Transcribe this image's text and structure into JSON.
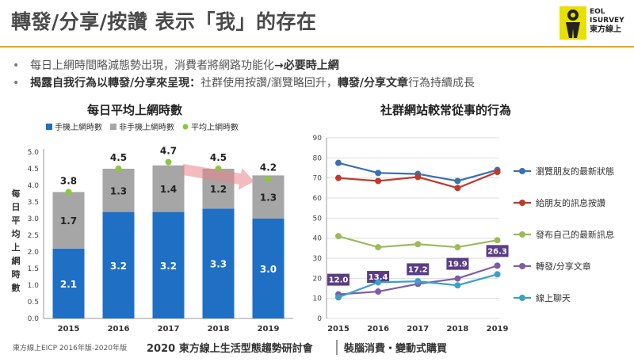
{
  "title": "轉發/分享/按讚 表示「我」的存在",
  "logo": {
    "line1": "EOL",
    "line2": "ISURVEY",
    "line3": "東方線上"
  },
  "bullets": [
    {
      "plain": "每日上網時間略減態勢出現，消費者將網路功能化",
      "bold": "→必要時上網",
      "rest": ""
    },
    {
      "bold": "揭露自我行為以轉發/分享來呈現：",
      "plain": "社群使用按讚/瀏覽略回升，",
      "bold2": "轉發/分享文章",
      "rest": "行為持續成長"
    }
  ],
  "source_note": "東方線上EICP 2016年版-2020年版",
  "footer": {
    "event": "2020 東方線上生活型態趨勢研討會",
    "theme": "裝腦消費・變動式購買"
  },
  "colors": {
    "accent": "#f0a500",
    "mobile": "#1f6fc5",
    "nonmobile": "#a6a6a6",
    "avg": "#8dc63f"
  },
  "chart_data": [
    {
      "type": "bar",
      "title": "每日平均上網時數",
      "ylabel": "每日平均上網時數",
      "categories": [
        "2015",
        "2016",
        "2017",
        "2018",
        "2019"
      ],
      "stacked": true,
      "ylim": [
        0,
        5.0
      ],
      "yticks": [
        "0.0",
        "0.5",
        "1.0",
        "1.5",
        "2.0",
        "2.5",
        "3.0",
        "3.5",
        "4.0",
        "4.5",
        "5.0"
      ],
      "series": [
        {
          "name": "手機上網時數",
          "values": [
            2.1,
            3.2,
            3.2,
            3.3,
            3.0
          ],
          "labels": [
            "2.1",
            "3.2",
            "3.2",
            "3.3",
            "3.0"
          ],
          "color": "#1f6fc5"
        },
        {
          "name": "非手機上網時數",
          "values": [
            1.7,
            1.3,
            1.4,
            1.2,
            1.3
          ],
          "labels": [
            "1.7",
            "1.3",
            "1.4",
            "1.2",
            "1.3"
          ],
          "color": "#a6a6a6"
        },
        {
          "name": "平均上網時數",
          "values": [
            3.8,
            4.5,
            4.7,
            4.5,
            4.2
          ],
          "labels": [
            "3.8",
            "4.5",
            "4.7",
            "4.5",
            "4.2"
          ],
          "color": "#8dc63f",
          "type": "point"
        }
      ],
      "legend": "top",
      "annotation": "trend arrow from 2017 to 2019 (declining)"
    },
    {
      "type": "line",
      "title": "社群網站較常從事的行為",
      "categories": [
        "2015",
        "2016",
        "2017",
        "2018",
        "2019"
      ],
      "ylim": [
        0,
        90
      ],
      "yticks": [
        "0",
        "10",
        "20",
        "30",
        "40",
        "50",
        "60",
        "70",
        "80",
        "90"
      ],
      "series": [
        {
          "name": "瀏覽朋友的最新狀態",
          "values": [
            77.5,
            72.5,
            72,
            68.5,
            74
          ],
          "color": "#3a6fb0"
        },
        {
          "name": "給朋友的訊息按讚",
          "values": [
            70,
            68.5,
            70.5,
            65,
            73
          ],
          "color": "#c0392b"
        },
        {
          "name": "發布自己的最新訊息",
          "values": [
            41,
            35.5,
            37,
            35.5,
            39
          ],
          "color": "#9bbb59"
        },
        {
          "name": "轉發/分享文章",
          "values": [
            12.0,
            13.4,
            17.2,
            19.9,
            26.3
          ],
          "labels": [
            "12.0",
            "13.4",
            "17.2",
            "19.9",
            "26.3"
          ],
          "color": "#7e5ba6"
        },
        {
          "name": "線上聊天",
          "values": [
            10.5,
            18,
            18.5,
            16.5,
            22
          ],
          "color": "#3aa0c8"
        }
      ],
      "legend": "right"
    }
  ]
}
